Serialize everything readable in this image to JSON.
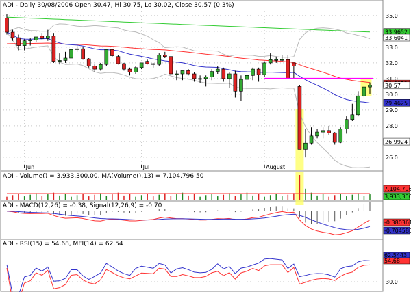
{
  "chart_data": {
    "type": "candlestick",
    "title": "ADI - Daily 30/08/2006 Open 30.47, Hi 30.75, Lo 30.02, Close 30.57 (0.3%)",
    "x_labels": [
      "Jun",
      "Jul",
      "August"
    ],
    "price_ylim": [
      25.3,
      35.3
    ],
    "price_ticks": [
      "35.0",
      "34.0",
      "33.0",
      "32.0",
      "31.0",
      "30.0",
      "29.0",
      "28.0",
      "27.0",
      "26.0"
    ],
    "price_tags": [
      {
        "text": "33.9652",
        "color": "#33cc33"
      },
      {
        "text": "33.6041",
        "color": "#ffffff"
      },
      {
        "text": "30.6852",
        "color": "#ff3333"
      },
      {
        "text": "30.57",
        "color": "#ffffff"
      },
      {
        "text": "29.4625",
        "color": "#3333cc"
      },
      {
        "text": "26.9924",
        "color": "#ffffff"
      }
    ],
    "candles": {
      "open": [
        34.85,
        33.95,
        33.6,
        33.1,
        33.4,
        33.45,
        33.7,
        33.55,
        33.7,
        32.1,
        32.15,
        32.3,
        32.85,
        32.9,
        32.25,
        31.8,
        31.6,
        31.9,
        32.85,
        32.4,
        31.95,
        31.6,
        31.4,
        31.7,
        32.1,
        31.95,
        31.9,
        32.5,
        32.4,
        31.3,
        31.3,
        31.5,
        31.3,
        31.0,
        31.0,
        31.1,
        31.45,
        31.6,
        31.0,
        31.3,
        30.2,
        30.95,
        31.2,
        31.6,
        31.25,
        32.0,
        32.2,
        32.2,
        32.2,
        32.0,
        30.5,
        26.5,
        26.9,
        27.35,
        27.6,
        27.7,
        27.55,
        26.95,
        27.8,
        28.4,
        28.7,
        29.9,
        30.47
      ],
      "high": [
        35.1,
        34.1,
        33.8,
        33.5,
        33.6,
        33.6,
        33.9,
        34.1,
        33.9,
        32.6,
        32.7,
        32.8,
        33.1,
        33.0,
        32.3,
        31.9,
        32.0,
        32.9,
        32.9,
        32.5,
        32.0,
        31.7,
        31.8,
        32.0,
        32.2,
        32.0,
        32.6,
        32.7,
        32.4,
        31.5,
        31.5,
        31.6,
        31.4,
        31.2,
        31.2,
        31.6,
        31.8,
        31.7,
        31.4,
        31.5,
        31.2,
        31.2,
        31.7,
        31.7,
        32.1,
        32.6,
        32.4,
        32.5,
        32.5,
        32.0,
        30.6,
        27.8,
        27.9,
        27.8,
        27.9,
        28.0,
        27.6,
        27.9,
        28.6,
        29.4,
        30.2,
        30.5,
        30.75
      ],
      "low": [
        33.8,
        33.4,
        32.8,
        32.8,
        33.1,
        33.3,
        33.5,
        33.4,
        32.0,
        31.9,
        32.0,
        32.3,
        32.7,
        32.2,
        31.7,
        31.4,
        31.5,
        31.8,
        32.4,
        31.9,
        31.5,
        31.2,
        31.3,
        31.6,
        31.9,
        31.7,
        31.8,
        32.3,
        31.2,
        30.9,
        30.9,
        31.2,
        30.8,
        30.7,
        30.5,
        30.9,
        31.3,
        30.8,
        30.4,
        29.8,
        29.6,
        30.3,
        30.9,
        30.8,
        31.1,
        31.9,
        32.0,
        32.1,
        31.1,
        31.0,
        30.3,
        26.0,
        26.8,
        27.2,
        27.2,
        27.4,
        26.8,
        26.9,
        27.5,
        28.3,
        28.6,
        29.8,
        30.02
      ],
      "close": [
        33.95,
        33.6,
        33.1,
        33.4,
        33.45,
        33.65,
        33.55,
        33.7,
        32.1,
        32.15,
        32.3,
        32.85,
        32.9,
        32.25,
        31.8,
        31.6,
        31.9,
        32.85,
        32.45,
        31.95,
        31.6,
        31.4,
        31.7,
        32.0,
        31.95,
        31.9,
        32.5,
        32.4,
        31.3,
        31.3,
        31.5,
        31.3,
        31.0,
        31.0,
        31.1,
        31.45,
        31.6,
        31.0,
        31.3,
        30.2,
        30.95,
        31.2,
        31.6,
        31.25,
        32.0,
        32.2,
        32.2,
        32.2,
        31.0,
        31.8,
        26.5,
        26.9,
        27.35,
        27.6,
        27.7,
        27.55,
        26.95,
        27.8,
        28.4,
        28.7,
        29.9,
        30.47,
        30.57
      ]
    },
    "horizontal_line": {
      "value": 31.0,
      "color": "#ff00ff"
    },
    "volume_header": "ADI - Volume() = 3,933,300.00, MA(Volume(),13) = 7,104,796.50",
    "volume_tags": [
      {
        "text": "7,104,796.5",
        "color": "#ff3333"
      },
      {
        "text": "3,933,300",
        "color": "#33cc33"
      }
    ],
    "macd_header": "ADI - MACD(12,26) = -0.38, Signal(12,26,9) = -0.70",
    "macd_tags": [
      {
        "text": "-0.380361",
        "color": "#ff3333"
      },
      {
        "text": "-0.704586",
        "color": "#3333cc"
      }
    ],
    "rsi_header": "ADI - RSI(15) = 54.68, MFI(14) = 62.54",
    "rsi_tags": [
      {
        "text": "62.5443",
        "color": "#3333cc"
      },
      {
        "text": "54.68",
        "color": "#ff3333"
      }
    ],
    "rsi_tick": "30.0",
    "series_colors": {
      "up": "#33aa33",
      "down": "#dd2222",
      "ma20": "#3333cc",
      "ma50": "#ff3333",
      "ma200": "#33cc33",
      "band": "#bbbbbb",
      "volume": "#228822",
      "volume_ma": "#ff3333",
      "macd": "#ff3333",
      "signal": "#3333cc",
      "rsi": "#ff3333",
      "mfi": "#3333cc",
      "highlight": "#ffff66"
    }
  }
}
